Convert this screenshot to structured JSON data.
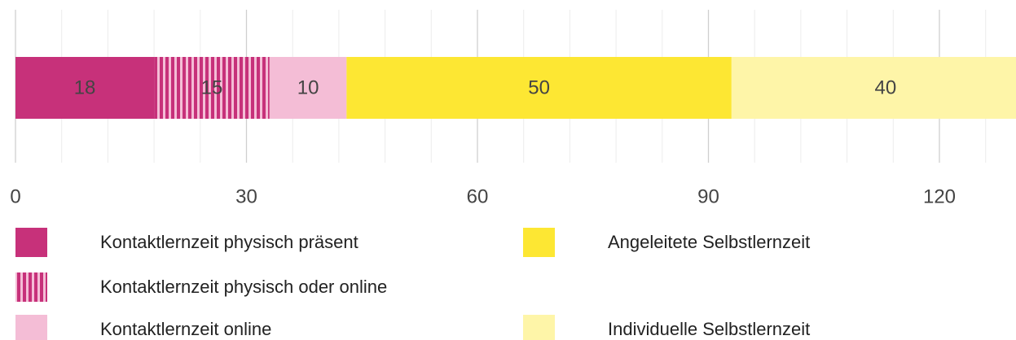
{
  "chart_data": {
    "type": "stacked_barh",
    "series": [
      {
        "name": "Kontaktlernzeit physisch präsent",
        "color": "#c7317a",
        "values": [
          18
        ]
      },
      {
        "name": "Kontaktlernzeit physisch oder online",
        "color": "#c7317a",
        "pattern": "stripes",
        "values": [
          15
        ]
      },
      {
        "name": "Kontaktlernzeit online",
        "color": "#f4bdd6",
        "values": [
          10
        ]
      },
      {
        "name": "Angeleitete Selbstlernzeit",
        "color": "#fde733",
        "values": [
          50
        ]
      },
      {
        "name": "Individuelle Selbstlernzeit",
        "color": "#fef5a8",
        "values": [
          40
        ]
      }
    ],
    "xlim": [
      0,
      130
    ],
    "xticks": [
      0,
      30,
      60,
      90,
      120
    ],
    "minor_xticks": [
      6,
      12,
      18,
      24,
      36,
      42,
      48,
      54,
      66,
      72,
      78,
      84,
      96,
      102,
      108,
      114,
      126
    ],
    "grid": true
  }
}
